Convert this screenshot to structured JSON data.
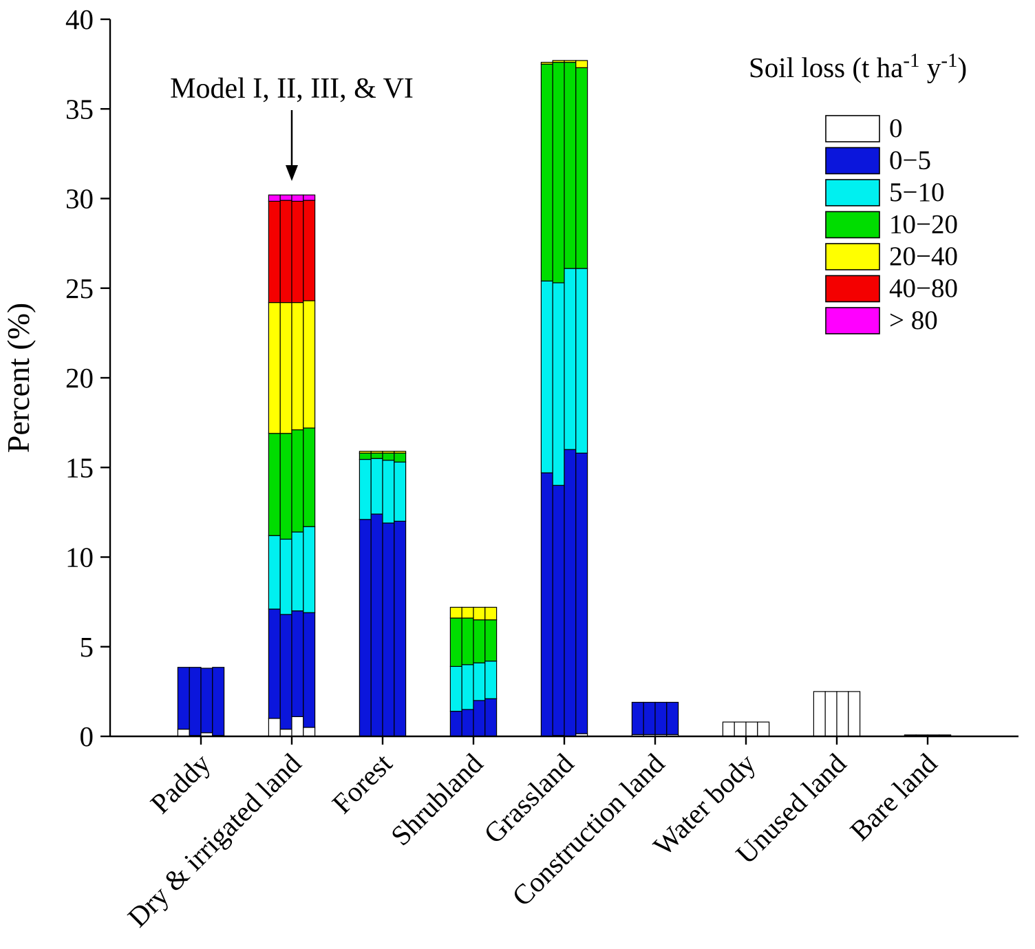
{
  "chart_data": {
    "type": "bar",
    "stacked": true,
    "bars_per_category": 4,
    "ylabel": "Percent (%)",
    "ylim": [
      0,
      40
    ],
    "yticks": [
      0,
      5,
      10,
      15,
      20,
      25,
      30,
      35,
      40
    ],
    "grid": false,
    "categories": [
      "Paddy",
      "Dry & irrigated land",
      "Forest",
      "Shrubland",
      "Grassland",
      "Construction land",
      "Water body",
      "Unused land",
      "Bare land"
    ],
    "annotation": {
      "text": "Model I, II, III, & VI",
      "target_category": "Dry & irrigated land"
    },
    "legend": {
      "position": "upper right",
      "title_parts": {
        "base1": "Soil loss (t ha",
        "sup1": "-1",
        "base2": " y",
        "sup2": "-1",
        "base3": ")"
      }
    },
    "series": [
      {
        "name": "0",
        "color": "#ffffff",
        "values": [
          [
            0.4,
            0.05,
            0.2,
            0.05
          ],
          [
            1.0,
            0.4,
            1.1,
            0.5
          ],
          [
            0,
            0,
            0,
            0
          ],
          [
            0,
            0,
            0,
            0
          ],
          [
            0,
            0.05,
            0,
            0.15
          ],
          [
            0.1,
            0.1,
            0.1,
            0.1
          ],
          [
            0.8,
            0.8,
            0.8,
            0.8
          ],
          [
            2.5,
            2.5,
            2.5,
            2.5
          ],
          [
            0.03,
            0.03,
            0.03,
            0.03
          ]
        ]
      },
      {
        "name": "0−5",
        "color": "#0b16dc",
        "values": [
          [
            3.45,
            3.8,
            3.6,
            3.8
          ],
          [
            6.1,
            6.4,
            5.9,
            6.4
          ],
          [
            12.1,
            12.4,
            11.9,
            12.0
          ],
          [
            1.4,
            1.5,
            2.0,
            2.1
          ],
          [
            14.7,
            13.95,
            16.0,
            15.65
          ],
          [
            1.8,
            1.8,
            1.8,
            1.8
          ],
          [
            0,
            0,
            0,
            0
          ],
          [
            0,
            0,
            0,
            0
          ],
          [
            0.05,
            0.05,
            0.05,
            0.05
          ]
        ]
      },
      {
        "name": "5−10",
        "color": "#00f0f0",
        "values": [
          [
            0,
            0,
            0,
            0
          ],
          [
            4.1,
            4.2,
            4.4,
            4.8
          ],
          [
            3.35,
            3.1,
            3.5,
            3.3
          ],
          [
            2.5,
            2.5,
            2.1,
            2.1
          ],
          [
            10.7,
            11.3,
            10.1,
            10.3
          ],
          [
            0,
            0,
            0,
            0
          ],
          [
            0,
            0,
            0,
            0
          ],
          [
            0,
            0,
            0,
            0
          ],
          [
            0,
            0,
            0,
            0
          ]
        ]
      },
      {
        "name": "10−20",
        "color": "#00dd00",
        "values": [
          [
            0,
            0,
            0,
            0
          ],
          [
            5.7,
            5.9,
            5.7,
            5.5
          ],
          [
            0.35,
            0.3,
            0.4,
            0.5
          ],
          [
            2.7,
            2.6,
            2.4,
            2.3
          ],
          [
            12.1,
            12.3,
            11.5,
            11.2
          ],
          [
            0,
            0,
            0,
            0
          ],
          [
            0,
            0,
            0,
            0
          ],
          [
            0,
            0,
            0,
            0
          ],
          [
            0,
            0,
            0,
            0
          ]
        ]
      },
      {
        "name": "20−40",
        "color": "#ffff00",
        "values": [
          [
            0,
            0,
            0,
            0
          ],
          [
            7.3,
            7.3,
            7.1,
            7.1
          ],
          [
            0.1,
            0.1,
            0.1,
            0.1
          ],
          [
            0.6,
            0.6,
            0.7,
            0.7
          ],
          [
            0.1,
            0.1,
            0.1,
            0.4
          ],
          [
            0,
            0,
            0,
            0
          ],
          [
            0,
            0,
            0,
            0
          ],
          [
            0,
            0,
            0,
            0
          ],
          [
            0,
            0,
            0,
            0
          ]
        ]
      },
      {
        "name": "40−80",
        "color": "#f40000",
        "values": [
          [
            0,
            0,
            0,
            0
          ],
          [
            5.65,
            5.7,
            5.65,
            5.6
          ],
          [
            0,
            0,
            0,
            0
          ],
          [
            0,
            0,
            0,
            0
          ],
          [
            0,
            0,
            0,
            0
          ],
          [
            0,
            0,
            0,
            0
          ],
          [
            0,
            0,
            0,
            0
          ],
          [
            0,
            0,
            0,
            0
          ],
          [
            0,
            0,
            0,
            0
          ]
        ]
      },
      {
        "name": "> 80",
        "color": "#ff00ff",
        "values": [
          [
            0,
            0,
            0,
            0
          ],
          [
            0.35,
            0.3,
            0.35,
            0.3
          ],
          [
            0,
            0,
            0,
            0
          ],
          [
            0,
            0,
            0,
            0
          ],
          [
            0,
            0,
            0,
            0
          ],
          [
            0,
            0,
            0,
            0
          ],
          [
            0,
            0,
            0,
            0
          ],
          [
            0,
            0,
            0,
            0
          ],
          [
            0,
            0,
            0,
            0
          ]
        ]
      }
    ]
  }
}
